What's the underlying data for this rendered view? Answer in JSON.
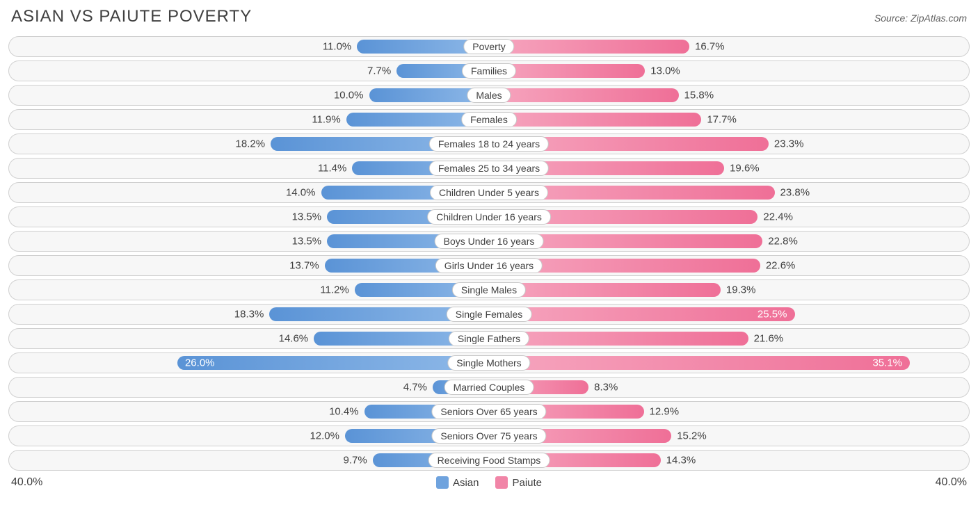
{
  "title": "ASIAN VS PAIUTE POVERTY",
  "source": "Source: ZipAtlas.com",
  "axis_max": 40.0,
  "axis_label": "40.0%",
  "colors": {
    "asian_start": "#8fb9e8",
    "asian_end": "#5a93d6",
    "paiute_start": "#f6a6bf",
    "paiute_end": "#ef6f97",
    "track_bg": "#f7f7f7",
    "track_border": "#d0d0d0",
    "text": "#404040"
  },
  "series": [
    {
      "name": "Asian",
      "color": "#6fa3de"
    },
    {
      "name": "Paiute",
      "color": "#f185a7"
    }
  ],
  "rows": [
    {
      "label": "Poverty",
      "asian": 11.0,
      "paiute": 16.7
    },
    {
      "label": "Families",
      "asian": 7.7,
      "paiute": 13.0
    },
    {
      "label": "Males",
      "asian": 10.0,
      "paiute": 15.8
    },
    {
      "label": "Females",
      "asian": 11.9,
      "paiute": 17.7
    },
    {
      "label": "Females 18 to 24 years",
      "asian": 18.2,
      "paiute": 23.3
    },
    {
      "label": "Females 25 to 34 years",
      "asian": 11.4,
      "paiute": 19.6
    },
    {
      "label": "Children Under 5 years",
      "asian": 14.0,
      "paiute": 23.8
    },
    {
      "label": "Children Under 16 years",
      "asian": 13.5,
      "paiute": 22.4
    },
    {
      "label": "Boys Under 16 years",
      "asian": 13.5,
      "paiute": 22.8
    },
    {
      "label": "Girls Under 16 years",
      "asian": 13.7,
      "paiute": 22.6
    },
    {
      "label": "Single Males",
      "asian": 11.2,
      "paiute": 19.3
    },
    {
      "label": "Single Females",
      "asian": 18.3,
      "paiute": 25.5
    },
    {
      "label": "Single Fathers",
      "asian": 14.6,
      "paiute": 21.6
    },
    {
      "label": "Single Mothers",
      "asian": 26.0,
      "paiute": 35.1
    },
    {
      "label": "Married Couples",
      "asian": 4.7,
      "paiute": 8.3
    },
    {
      "label": "Seniors Over 65 years",
      "asian": 10.4,
      "paiute": 12.9
    },
    {
      "label": "Seniors Over 75 years",
      "asian": 12.0,
      "paiute": 15.2
    },
    {
      "label": "Receiving Food Stamps",
      "asian": 9.7,
      "paiute": 14.3
    }
  ]
}
